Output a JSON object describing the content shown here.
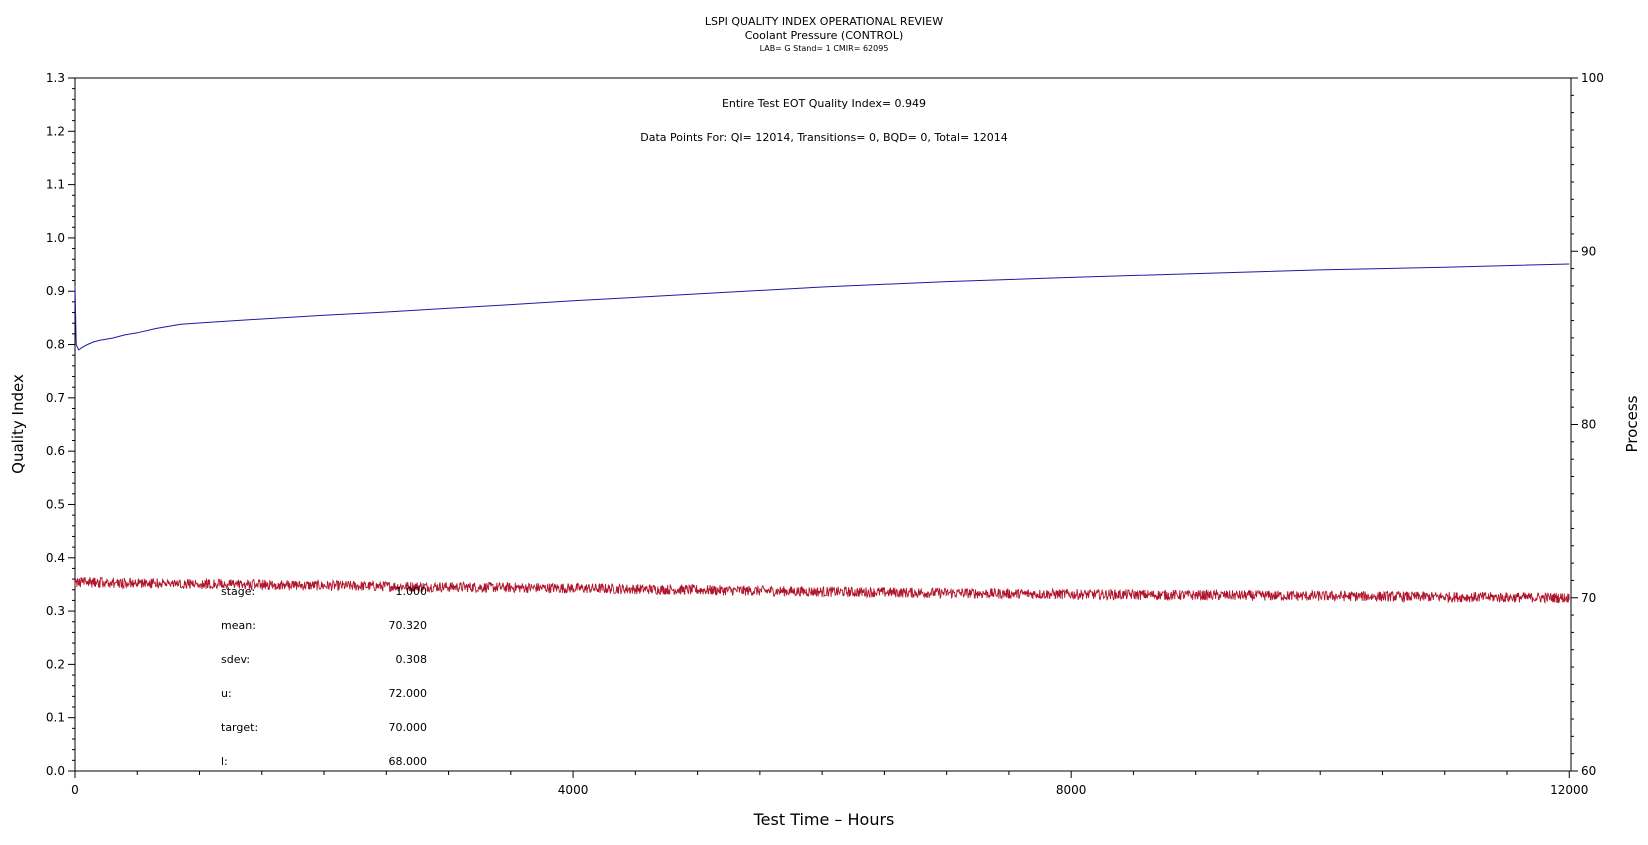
{
  "chart_data": {
    "type": "line",
    "title": "LSPI QUALITY INDEX OPERATIONAL REVIEW",
    "subtitle": "Coolant Pressure (CONTROL)",
    "subtitle2": "LAB= G Stand= 1 CMIR= 62095",
    "xlabel": "Test Time – Hours",
    "ylabel": "Quality Index",
    "y2label": "Process",
    "xlim": [
      0,
      12014
    ],
    "ylim": [
      0,
      1.3
    ],
    "y2lim": [
      60,
      100
    ],
    "x_ticks": [
      0,
      4000,
      8000,
      12000
    ],
    "x_tick_labels": [
      "0",
      "4000",
      "8000",
      "12000"
    ],
    "y_ticks": [
      0.0,
      0.1,
      0.2,
      0.3,
      0.4,
      0.5,
      0.6,
      0.7,
      0.8,
      0.9,
      1.0,
      1.1,
      1.2,
      1.3
    ],
    "y_tick_labels": [
      "0.0",
      "0.1",
      "0.2",
      "0.3",
      "0.4",
      "0.5",
      "0.6",
      "0.7",
      "0.8",
      "0.9",
      "1.0",
      "1.1",
      "1.2",
      "1.3"
    ],
    "y2_ticks": [
      60,
      70,
      80,
      90,
      100
    ],
    "y2_tick_labels": [
      "60",
      "70",
      "80",
      "90",
      "100"
    ],
    "grid": false,
    "annotations": [
      "Entire Test EOT Quality Index=   0.949",
      "Data Points For: QI= 12014, Transitions=      0, BQD=      0, Total= 12014"
    ],
    "stats_table": [
      {
        "label": "stage:",
        "value": "1.000"
      },
      {
        "label": "mean:",
        "value": "70.320"
      },
      {
        "label": "sdev:",
        "value": "0.308"
      },
      {
        "label": "u:",
        "value": "72.000"
      },
      {
        "label": "target:",
        "value": "70.000"
      },
      {
        "label": "l:",
        "value": "68.000"
      }
    ],
    "series": [
      {
        "axis": "left",
        "color": "#1a1aa6",
        "x": [
          0,
          10,
          30,
          60,
          100,
          150,
          200,
          300,
          400,
          500,
          650,
          850,
          1100,
          1500,
          2000,
          2500,
          3000,
          3500,
          4000,
          5000,
          6000,
          7000,
          8000,
          9000,
          10000,
          11000,
          12000
        ],
        "y": [
          0.91,
          0.8,
          0.79,
          0.795,
          0.8,
          0.805,
          0.808,
          0.812,
          0.818,
          0.822,
          0.83,
          0.838,
          0.842,
          0.848,
          0.855,
          0.861,
          0.868,
          0.875,
          0.882,
          0.895,
          0.908,
          0.918,
          0.926,
          0.933,
          0.94,
          0.945,
          0.951
        ]
      },
      {
        "axis": "right",
        "color": "#b0152c",
        "x": [
          0,
          2000,
          4000,
          6000,
          8000,
          10000,
          12000
        ],
        "y": [
          70.9,
          70.7,
          70.55,
          70.35,
          70.2,
          70.1,
          70.0
        ],
        "noise": 0.3
      }
    ]
  }
}
